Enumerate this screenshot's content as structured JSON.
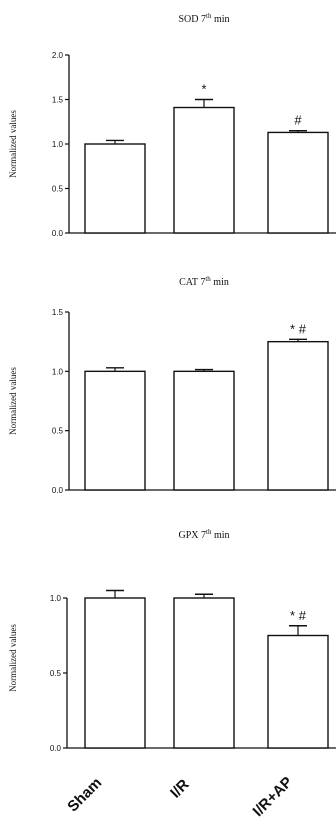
{
  "chart_data": [
    {
      "type": "bar",
      "title": "SOD 7th min",
      "title_main": "SOD 7",
      "title_sup": "th",
      "title_tail": " min",
      "ylabel": "Normalized values",
      "categories": [
        "Sham",
        "I/R",
        "I/R+AP"
      ],
      "values": [
        1.0,
        1.41,
        1.13
      ],
      "errors": [
        0.04,
        0.09,
        0.02
      ],
      "annotations": [
        "",
        "*",
        "#"
      ],
      "ylim": [
        0,
        2.0
      ],
      "yticks": [
        0.0,
        0.5,
        1.0,
        1.5,
        2.0
      ],
      "ytick_labels": [
        "0.0",
        "0.5",
        "1.0",
        "1.5",
        "2.0"
      ],
      "grid": false
    },
    {
      "type": "bar",
      "title": "CAT 7th min",
      "title_main": "CAT 7",
      "title_sup": "th",
      "title_tail": " min",
      "ylabel": "Normalized values",
      "categories": [
        "Sham",
        "I/R",
        "I/R+AP"
      ],
      "values": [
        1.0,
        1.0,
        1.25
      ],
      "errors": [
        0.03,
        0.015,
        0.02
      ],
      "annotations": [
        "",
        "",
        "* #"
      ],
      "ylim": [
        0,
        1.5
      ],
      "yticks": [
        0.0,
        0.5,
        1.0,
        1.5
      ],
      "ytick_labels": [
        "0.0",
        "0.5",
        "1.0",
        "1.5"
      ],
      "grid": false
    },
    {
      "type": "bar",
      "title": "GPX 7th min",
      "title_main": "GPX 7",
      "title_sup": "th",
      "title_tail": " min",
      "ylabel": "Normalized values",
      "categories": [
        "Sham",
        "I/R",
        "I/R+AP"
      ],
      "values": [
        1.0,
        1.0,
        0.75
      ],
      "errors": [
        0.05,
        0.025,
        0.065
      ],
      "annotations": [
        "",
        "",
        "* #"
      ],
      "ylim": [
        0,
        1.2
      ],
      "yticks": [
        0.0,
        0.5,
        1.0
      ],
      "ytick_labels": [
        "0.0",
        "0.5",
        "1.0"
      ],
      "grid": false
    }
  ],
  "x_tick_labels": [
    "Sham",
    "I/R",
    "I/R+AP"
  ]
}
